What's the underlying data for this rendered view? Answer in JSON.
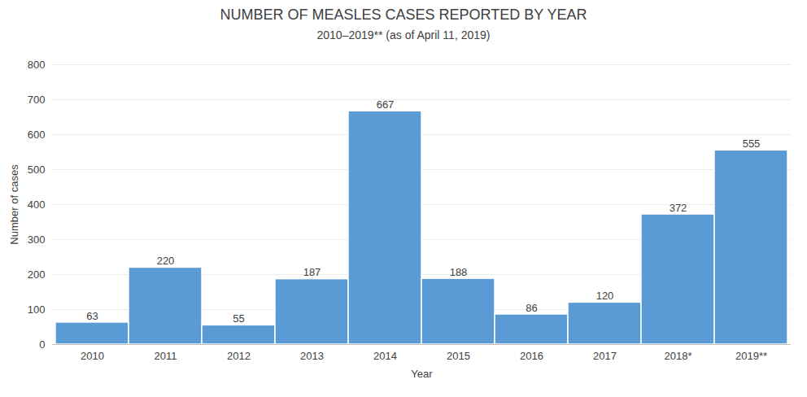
{
  "chart_data": {
    "type": "bar",
    "title": "NUMBER OF MEASLES CASES REPORTED BY YEAR",
    "subtitle": "2010–2019** (as of April 11, 2019)",
    "xlabel": "Year",
    "ylabel": "Number of cases",
    "categories": [
      "2010",
      "2011",
      "2012",
      "2013",
      "2014",
      "2015",
      "2016",
      "2017",
      "2018*",
      "2019**"
    ],
    "values": [
      63,
      220,
      55,
      187,
      667,
      188,
      86,
      120,
      372,
      555
    ],
    "color": "#5b9bd5",
    "ylim": [
      0,
      800
    ],
    "yticks": [
      0,
      100,
      200,
      300,
      400,
      500,
      600,
      700,
      800
    ],
    "grid": true,
    "data_labels": true
  }
}
